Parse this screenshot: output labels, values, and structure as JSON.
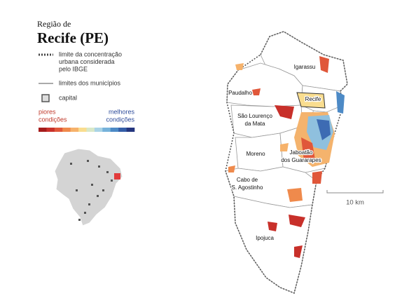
{
  "header": {
    "kicker": "Região de",
    "title": "Recife (PE)"
  },
  "legend": {
    "items": [
      {
        "symbol": "dotted",
        "lines": [
          "limite da concentração",
          "urbana considerada",
          "pelo IBGE"
        ]
      },
      {
        "symbol": "line",
        "lines": [
          "limites dos municípios"
        ]
      },
      {
        "symbol": "square",
        "lines": [
          "capital"
        ]
      }
    ],
    "worse": [
      "piores",
      "condições"
    ],
    "better": [
      "melhores",
      "condições"
    ],
    "scale_colors": [
      "#a51c1c",
      "#c8302a",
      "#e0573a",
      "#ef8a4c",
      "#f6b26b",
      "#f9dd8f",
      "#d8e8c8",
      "#a9d3e6",
      "#76b2da",
      "#4d8ac6",
      "#345ea8",
      "#24357e"
    ]
  },
  "map": {
    "labels": [
      {
        "lines": [
          "Igarassu"
        ]
      },
      {
        "lines": [
          "Paudalho"
        ]
      },
      {
        "lines": [
          "Recife"
        ]
      },
      {
        "lines": [
          "São Lourenço",
          "da Mata"
        ]
      },
      {
        "lines": [
          "Moreno"
        ]
      },
      {
        "lines": [
          "Jaboatão",
          "dos Guararapes"
        ]
      },
      {
        "lines": [
          "Cabo de",
          "S. Agostinho"
        ]
      },
      {
        "lines": [
          "Ipojuca"
        ]
      }
    ],
    "scale_label": "10 km"
  }
}
